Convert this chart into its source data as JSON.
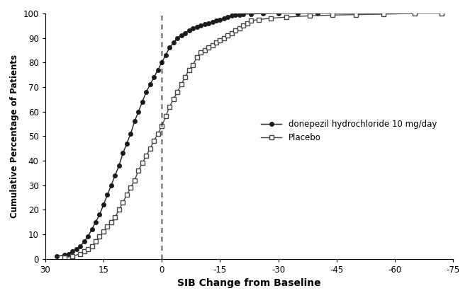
{
  "title": "",
  "xlabel": "SIB Change from Baseline",
  "ylabel": "Cumulative Percentage of Patients",
  "xlim": [
    30,
    -75
  ],
  "ylim": [
    0,
    100
  ],
  "xticks": [
    30,
    15,
    0,
    -15,
    -30,
    -45,
    -60,
    -75
  ],
  "yticks": [
    0,
    10,
    20,
    30,
    40,
    50,
    60,
    70,
    80,
    90,
    100
  ],
  "vline_x": 0,
  "legend_labels": [
    "donepezil hydrochloride 10 mg/day",
    "Placebo"
  ],
  "donepezil_color": "#1a1a1a",
  "placebo_color": "#444444",
  "background_color": "#ffffff",
  "donepezil_x": [
    27,
    25,
    24,
    23,
    22,
    21,
    20,
    19,
    18,
    17,
    16,
    15,
    14,
    13,
    12,
    11,
    10,
    9,
    8,
    7,
    6,
    5,
    4,
    3,
    2,
    1,
    0,
    -1,
    -2,
    -3,
    -4,
    -5,
    -6,
    -7,
    -8,
    -9,
    -10,
    -11,
    -12,
    -13,
    -14,
    -15,
    -16,
    -17,
    -18,
    -19,
    -20,
    -21,
    -23,
    -26,
    -30,
    -35,
    -40,
    -65
  ],
  "donepezil_y": [
    1,
    1.5,
    2,
    3,
    4,
    5,
    7,
    9,
    12,
    15,
    18,
    22,
    26,
    30,
    34,
    38,
    43,
    47,
    51,
    56,
    60,
    64,
    68,
    71,
    74,
    77,
    80,
    83,
    86,
    88,
    90,
    91,
    92,
    93,
    94,
    94.5,
    95,
    95.5,
    96,
    96.5,
    97,
    97.5,
    98,
    98.5,
    99,
    99.3,
    99.5,
    99.7,
    99.8,
    99.9,
    100,
    100,
    100,
    100
  ],
  "placebo_x": [
    25,
    23,
    21,
    20,
    19,
    18,
    17,
    16,
    15,
    14,
    13,
    12,
    11,
    10,
    9,
    8,
    7,
    6,
    5,
    4,
    3,
    2,
    1,
    0,
    -1,
    -2,
    -3,
    -4,
    -5,
    -6,
    -7,
    -8,
    -9,
    -10,
    -11,
    -12,
    -13,
    -14,
    -15,
    -16,
    -17,
    -18,
    -19,
    -20,
    -21,
    -22,
    -23,
    -25,
    -28,
    -32,
    -38,
    -44,
    -50,
    -57,
    -65,
    -72
  ],
  "placebo_y": [
    0.5,
    1,
    2,
    3,
    4,
    5,
    7,
    9,
    11,
    13,
    15,
    17,
    20,
    23,
    26,
    29,
    32,
    36,
    39,
    42,
    45,
    48,
    51,
    54,
    58,
    62,
    65,
    68,
    71,
    74,
    77,
    79,
    82,
    84,
    85,
    86,
    87,
    88,
    89,
    90,
    91,
    92,
    93,
    94,
    95,
    96,
    97,
    97.5,
    98,
    98.5,
    99,
    99.3,
    99.5,
    99.7,
    100,
    100
  ]
}
